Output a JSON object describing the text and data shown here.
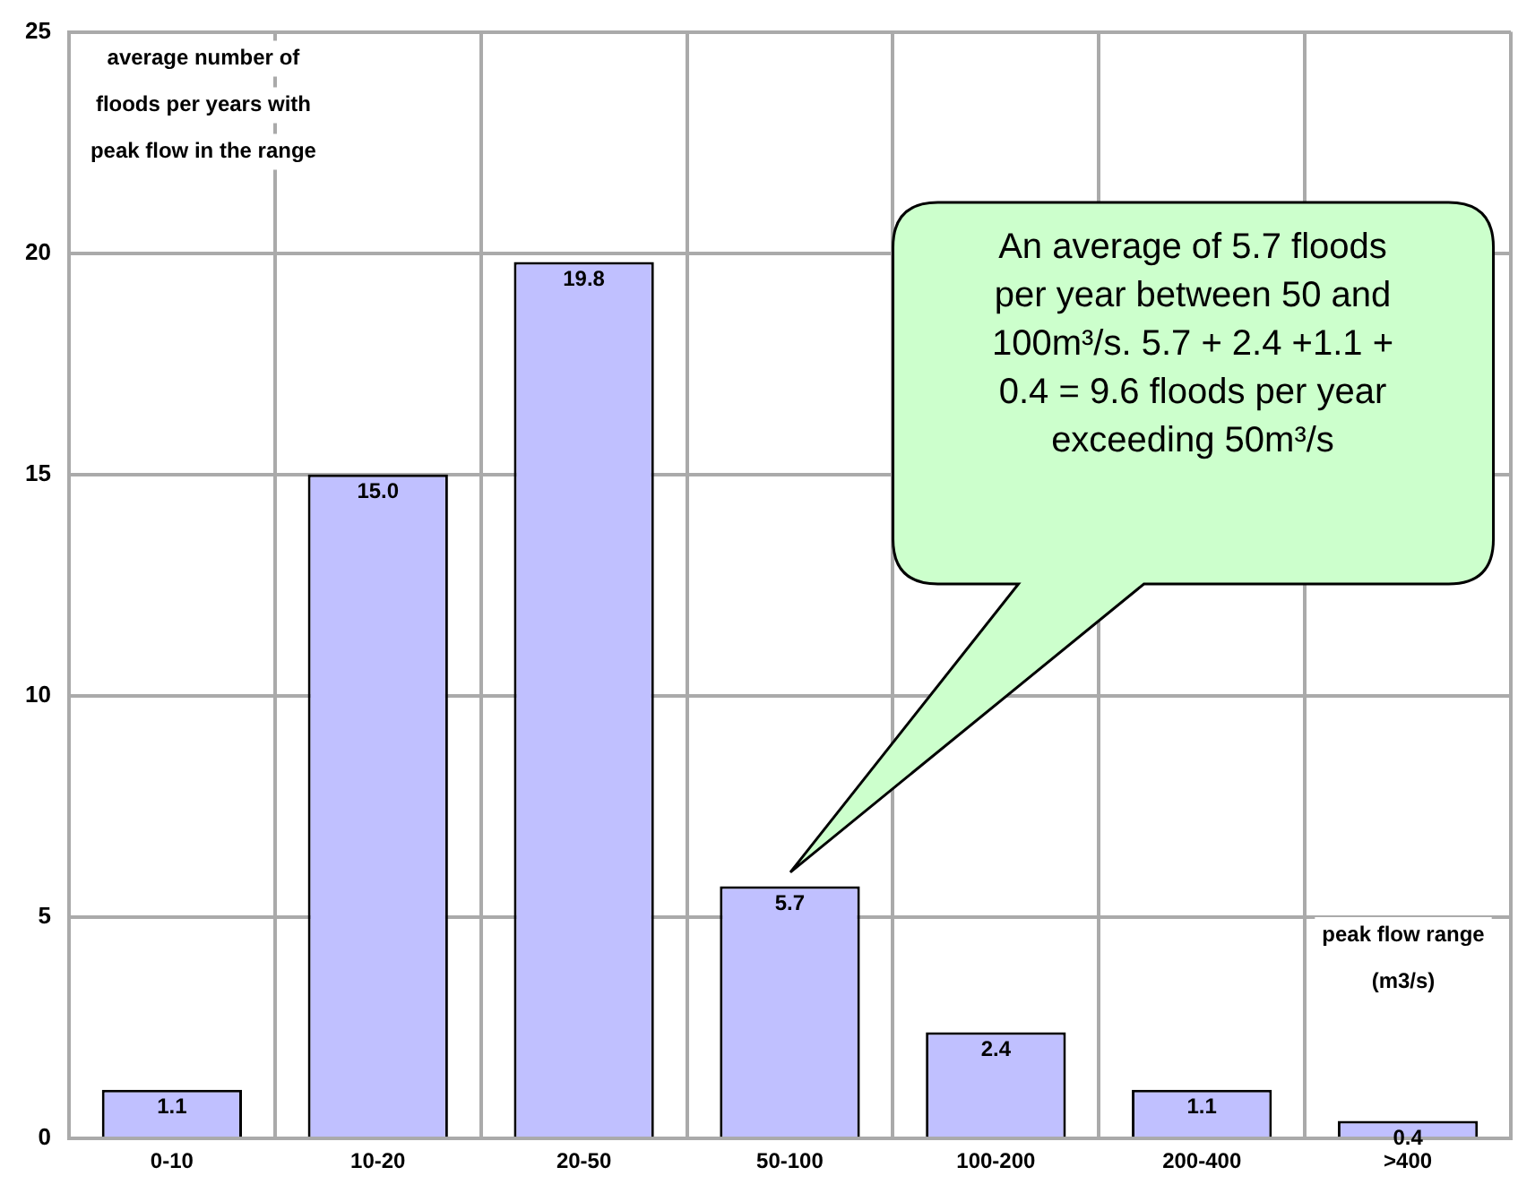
{
  "chart_data": {
    "type": "bar",
    "ylabel": "average number of floods per years with peak flow in the range",
    "xlabel": "peak flow range (m3/s)",
    "categories": [
      "0-10",
      "10-20",
      "20-50",
      "50-100",
      "100-200",
      "200-400",
      ">400"
    ],
    "values": [
      1.1,
      15.0,
      19.8,
      5.7,
      2.4,
      1.1,
      0.4
    ],
    "value_labels": [
      "1.1",
      "15.0",
      "19.8",
      "5.7",
      "2.4",
      "1.1",
      "0.4"
    ],
    "color": "#c0c0ff",
    "ylim": [
      0,
      25
    ],
    "yticks": [
      0,
      5,
      10,
      15,
      20,
      25
    ],
    "grid": true,
    "legend": false,
    "annotations": [
      "An average of 5.7 floods per year between 50 and 100m³/s. 5.7 + 2.4 +1.1 + 0.4 = 9.6 floods per year exceeding 50m³/s"
    ]
  }
}
